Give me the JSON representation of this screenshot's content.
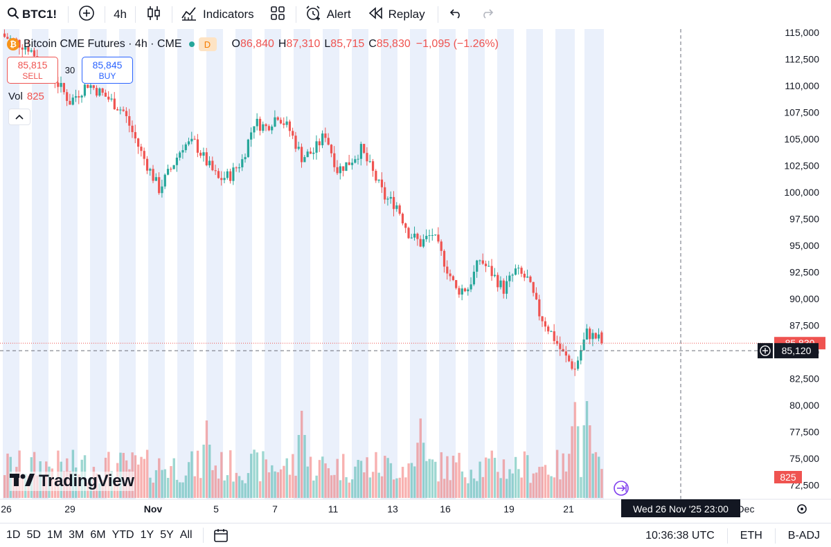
{
  "toolbar": {
    "symbol": "BTC1!",
    "interval": "4h",
    "indicators_label": "Indicators",
    "alert_label": "Alert",
    "replay_label": "Replay"
  },
  "legend": {
    "title": "Bitcoin CME Futures · 4h · CME",
    "d_badge": "D",
    "o_key": "O",
    "o_val": "86,840",
    "h_key": "H",
    "h_val": "87,310",
    "l_key": "L",
    "l_val": "85,715",
    "c_key": "C",
    "c_val": "85,830",
    "change": "−1,095 (−1.26%)"
  },
  "trade": {
    "sell_price": "85,815",
    "sell_label": "SELL",
    "spread": "30",
    "buy_price": "85,845",
    "buy_label": "BUY"
  },
  "volume_legend": {
    "label": "Vol",
    "value": "825"
  },
  "logo_text": "TradingView",
  "price_scale": {
    "last_price_label": "85,830",
    "crosshair_price": "85,120",
    "volume_label": "825"
  },
  "crosshair_time": "Wed 26 Nov '25   23:00",
  "bottom": {
    "ranges": [
      "1D",
      "5D",
      "1M",
      "3M",
      "6M",
      "YTD",
      "1Y",
      "5Y",
      "All"
    ],
    "time": "10:36:38 UTC",
    "session": "ETH",
    "adjust": "B-ADJ"
  },
  "colors": {
    "up": "#26a69a",
    "down": "#ef5350",
    "session": "#eaf0fb"
  },
  "chart_data": {
    "type": "candlestick",
    "title": "Bitcoin CME Futures · 4h · CME",
    "y_ticks": [
      "72,500",
      "75,000",
      "77,500",
      "80,000",
      "82,500",
      "85,000",
      "87,500",
      "90,000",
      "92,500",
      "95,000",
      "97,500",
      "100,000",
      "102,500",
      "105,000",
      "107,500",
      "110,000",
      "112,500",
      "115,000"
    ],
    "y_tick_values": [
      72500,
      75000,
      77500,
      80000,
      82500,
      85000,
      87500,
      90000,
      92500,
      95000,
      97500,
      100000,
      102500,
      105000,
      107500,
      110000,
      112500,
      115000
    ],
    "x_ticks": [
      "26",
      "29",
      "Nov",
      "5",
      "7",
      "11",
      "13",
      "16",
      "19",
      "21",
      "Dec"
    ],
    "ylim": [
      70000,
      117000
    ],
    "last_price": 85830,
    "crosshair_price": 85120,
    "close_path": [
      [
        0,
        114600
      ],
      [
        8,
        113600
      ],
      [
        16,
        111000
      ],
      [
        22,
        108500
      ],
      [
        28,
        110200
      ],
      [
        34,
        109000
      ],
      [
        40,
        107600
      ],
      [
        46,
        103700
      ],
      [
        52,
        100300
      ],
      [
        56,
        102200
      ],
      [
        60,
        104400
      ],
      [
        64,
        104600
      ],
      [
        68,
        102800
      ],
      [
        72,
        101200
      ],
      [
        76,
        101600
      ],
      [
        80,
        103000
      ],
      [
        84,
        106600
      ],
      [
        88,
        106100
      ],
      [
        92,
        107300
      ],
      [
        96,
        105800
      ],
      [
        100,
        103300
      ],
      [
        104,
        103800
      ],
      [
        108,
        105500
      ],
      [
        112,
        102100
      ],
      [
        116,
        102800
      ],
      [
        120,
        104000
      ],
      [
        124,
        101800
      ],
      [
        128,
        99500
      ],
      [
        132,
        98800
      ],
      [
        136,
        96200
      ],
      [
        140,
        95200
      ],
      [
        144,
        96100
      ],
      [
        148,
        93500
      ],
      [
        152,
        90800
      ],
      [
        156,
        91000
      ],
      [
        160,
        93700
      ],
      [
        164,
        92400
      ],
      [
        168,
        90900
      ],
      [
        172,
        92600
      ],
      [
        176,
        91800
      ],
      [
        180,
        88600
      ],
      [
        184,
        86800
      ],
      [
        188,
        84800
      ],
      [
        192,
        83400
      ],
      [
        194,
        85200
      ],
      [
        196,
        86800
      ],
      [
        200,
        86200
      ],
      [
        201,
        85830
      ]
    ],
    "volume_spikes": [
      [
        68,
        800
      ],
      [
        100,
        900
      ],
      [
        140,
        820
      ],
      [
        192,
        990
      ],
      [
        196,
        1000
      ]
    ]
  }
}
